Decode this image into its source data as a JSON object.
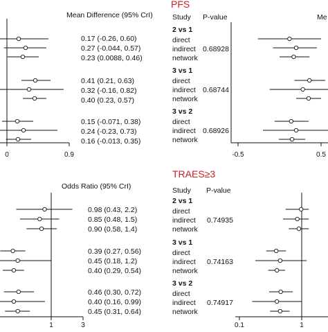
{
  "colors": {
    "panel_title": "#cc1f1f",
    "ink": "#111111",
    "marker_fill": "#ffffff"
  },
  "chart_data": [
    {
      "type": "forest",
      "panel": "top-left",
      "title": "",
      "column_header": "Mean Difference (95% CrI)",
      "scale": "linear",
      "xlim": [
        -0.3,
        0.9
      ],
      "xticks": [
        "0",
        "0.9"
      ],
      "reference_line": 0,
      "estimates": [
        {
          "group": "2 vs 1",
          "method": "direct",
          "est": 0.17,
          "lo": -0.26,
          "hi": 0.6,
          "label": "0.17 (-0.26, 0.60)"
        },
        {
          "group": "2 vs 1",
          "method": "indirect",
          "est": 0.27,
          "lo": -0.044,
          "hi": 0.57,
          "label": "0.27 (-0.044, 0.57)"
        },
        {
          "group": "2 vs 1",
          "method": "network",
          "est": 0.23,
          "lo": 0.0088,
          "hi": 0.46,
          "label": "0.23 (0.0088, 0.46)"
        },
        {
          "group": "3 vs 1",
          "method": "direct",
          "est": 0.41,
          "lo": 0.21,
          "hi": 0.63,
          "label": "0.41 (0.21, 0.63)"
        },
        {
          "group": "3 vs 1",
          "method": "indirect",
          "est": 0.32,
          "lo": -0.16,
          "hi": 0.82,
          "label": "0.32 (-0.16, 0.82)"
        },
        {
          "group": "3 vs 1",
          "method": "network",
          "est": 0.4,
          "lo": 0.23,
          "hi": 0.57,
          "label": "0.40 (0.23, 0.57)"
        },
        {
          "group": "3 vs 2",
          "method": "direct",
          "est": 0.15,
          "lo": -0.071,
          "hi": 0.38,
          "label": "0.15 (-0.071, 0.38)"
        },
        {
          "group": "3 vs 2",
          "method": "indirect",
          "est": 0.24,
          "lo": -0.23,
          "hi": 0.73,
          "label": "0.24 (-0.23, 0.73)"
        },
        {
          "group": "3 vs 2",
          "method": "network",
          "est": 0.16,
          "lo": -0.013,
          "hi": 0.35,
          "label": "0.16 (-0.013, 0.35)"
        }
      ]
    },
    {
      "type": "forest",
      "panel": "top-right",
      "title": "PFS",
      "study_header": "Study",
      "pvalue_header": "P-value",
      "column_header": "Me",
      "scale": "linear",
      "xlim": [
        -0.5,
        0.7
      ],
      "xticks": [
        "-0.5",
        "0.5"
      ],
      "reference_line": 0,
      "groups": [
        {
          "label": "2 vs 1",
          "methods": [
            "direct",
            "indirect",
            "network"
          ],
          "p_value": "0.68928"
        },
        {
          "label": "3 vs 1",
          "methods": [
            "direct",
            "indirect",
            "network"
          ],
          "p_value": "0.68744"
        },
        {
          "label": "3 vs 2",
          "methods": [
            "direct",
            "indirect",
            "network"
          ],
          "p_value": "0.68926"
        }
      ],
      "estimates": [
        {
          "group": "2 vs 1",
          "method": "direct",
          "est": 0.12,
          "lo": -0.26,
          "hi": 0.5
        },
        {
          "group": "2 vs 1",
          "method": "indirect",
          "est": 0.2,
          "lo": -0.08,
          "hi": 0.45
        },
        {
          "group": "2 vs 1",
          "method": "network",
          "est": 0.17,
          "lo": 0.0,
          "hi": 0.36
        },
        {
          "group": "3 vs 1",
          "method": "direct",
          "est": 0.36,
          "lo": 0.18,
          "hi": 0.55
        },
        {
          "group": "3 vs 1",
          "method": "indirect",
          "est": 0.28,
          "lo": -0.12,
          "hi": 0.7
        },
        {
          "group": "3 vs 1",
          "method": "network",
          "est": 0.35,
          "lo": 0.2,
          "hi": 0.5
        },
        {
          "group": "3 vs 2",
          "method": "direct",
          "est": 0.14,
          "lo": -0.06,
          "hi": 0.35
        },
        {
          "group": "3 vs 2",
          "method": "indirect",
          "est": 0.2,
          "lo": -0.2,
          "hi": 0.62
        },
        {
          "group": "3 vs 2",
          "method": "network",
          "est": 0.15,
          "lo": -0.01,
          "hi": 0.31
        }
      ]
    },
    {
      "type": "forest",
      "panel": "bottom-left",
      "title": "",
      "column_header": "Odds Ratio (95% CrI)",
      "scale": "log",
      "xlim": [
        0.1,
        3
      ],
      "xticks": [
        "1",
        "3"
      ],
      "reference_line": 1,
      "estimates": [
        {
          "group": "2 vs 1",
          "method": "direct",
          "est": 0.98,
          "lo": 0.43,
          "hi": 2.2,
          "label": "0.98 (0.43, 2.2)"
        },
        {
          "group": "2 vs 1",
          "method": "indirect",
          "est": 0.85,
          "lo": 0.48,
          "hi": 1.5,
          "label": "0.85 (0.48, 1.5)"
        },
        {
          "group": "2 vs 1",
          "method": "network",
          "est": 0.9,
          "lo": 0.58,
          "hi": 1.4,
          "label": "0.90 (0.58, 1.4)"
        },
        {
          "group": "3 vs 1",
          "method": "direct",
          "est": 0.39,
          "lo": 0.27,
          "hi": 0.56,
          "label": "0.39 (0.27, 0.56)"
        },
        {
          "group": "3 vs 1",
          "method": "indirect",
          "est": 0.45,
          "lo": 0.18,
          "hi": 1.2,
          "label": "0.45 (0.18, 1.2)"
        },
        {
          "group": "3 vs 1",
          "method": "network",
          "est": 0.4,
          "lo": 0.29,
          "hi": 0.54,
          "label": "0.40 (0.29, 0.54)"
        },
        {
          "group": "3 vs 2",
          "method": "direct",
          "est": 0.46,
          "lo": 0.3,
          "hi": 0.72,
          "label": "0.46 (0.30, 0.72)"
        },
        {
          "group": "3 vs 2",
          "method": "indirect",
          "est": 0.4,
          "lo": 0.16,
          "hi": 0.99,
          "label": "0.40 (0.16, 0.99)"
        },
        {
          "group": "3 vs 2",
          "method": "network",
          "est": 0.45,
          "lo": 0.31,
          "hi": 0.64,
          "label": "0.45 (0.31, 0.64)"
        }
      ]
    },
    {
      "type": "forest",
      "panel": "bottom-right",
      "title": "TRAES≥3",
      "study_header": "Study",
      "pvalue_header": "P-value",
      "scale": "log",
      "xlim": [
        0.1,
        1.3
      ],
      "xticks": [
        "0.1",
        "1"
      ],
      "reference_line": 1,
      "groups": [
        {
          "label": "2 vs 1",
          "methods": [
            "direct",
            "indirect",
            "network"
          ],
          "p_value": "0.74935"
        },
        {
          "label": "3 vs 1",
          "methods": [
            "direct",
            "indirect",
            "network"
          ],
          "p_value": "0.74163"
        },
        {
          "label": "3 vs 2",
          "methods": [
            "direct",
            "indirect",
            "network"
          ],
          "p_value": "0.74917"
        }
      ],
      "estimates": [
        {
          "group": "2 vs 1",
          "method": "direct",
          "est": 0.98,
          "lo": 0.55,
          "hi": 1.3
        },
        {
          "group": "2 vs 1",
          "method": "indirect",
          "est": 0.85,
          "lo": 0.5,
          "hi": 1.3
        },
        {
          "group": "2 vs 1",
          "method": "network",
          "est": 0.9,
          "lo": 0.62,
          "hi": 1.3
        },
        {
          "group": "3 vs 1",
          "method": "direct",
          "est": 0.39,
          "lo": 0.27,
          "hi": 0.56
        },
        {
          "group": "3 vs 1",
          "method": "indirect",
          "est": 0.45,
          "lo": 0.18,
          "hi": 1.2
        },
        {
          "group": "3 vs 1",
          "method": "network",
          "est": 0.4,
          "lo": 0.29,
          "hi": 0.54
        },
        {
          "group": "3 vs 2",
          "method": "direct",
          "est": 0.46,
          "lo": 0.3,
          "hi": 0.72
        },
        {
          "group": "3 vs 2",
          "method": "indirect",
          "est": 0.4,
          "lo": 0.16,
          "hi": 0.99
        },
        {
          "group": "3 vs 2",
          "method": "network",
          "est": 0.45,
          "lo": 0.31,
          "hi": 0.64
        }
      ]
    }
  ]
}
